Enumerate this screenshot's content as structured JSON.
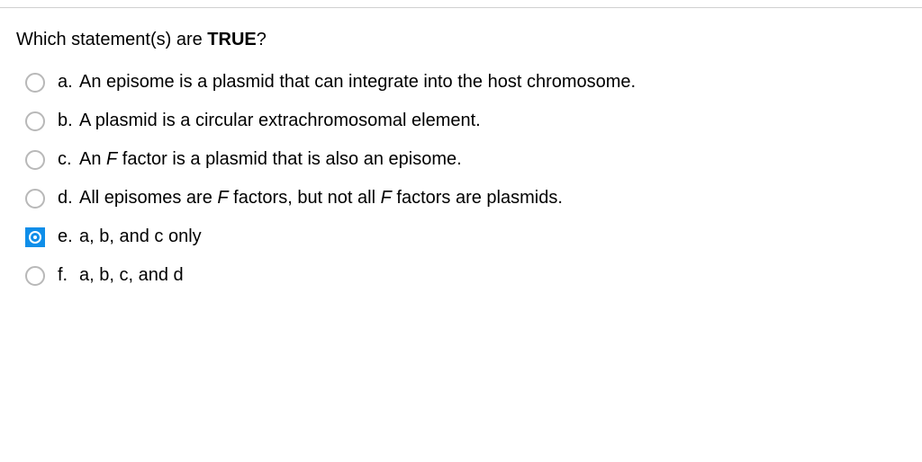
{
  "question": {
    "prefix": "Which statement(s) are ",
    "bold_word": "TRUE",
    "suffix": "?"
  },
  "options": [
    {
      "letter": "a.",
      "selected": false,
      "segments": [
        {
          "text": "An episome is a plasmid that can integrate into the host chromosome.",
          "italic": false
        }
      ]
    },
    {
      "letter": "b.",
      "selected": false,
      "segments": [
        {
          "text": "A plasmid is a circular extrachromosomal element.",
          "italic": false
        }
      ]
    },
    {
      "letter": "c.",
      "selected": false,
      "segments": [
        {
          "text": "An ",
          "italic": false
        },
        {
          "text": "F",
          "italic": true
        },
        {
          "text": " factor is a plasmid that is also an episome.",
          "italic": false
        }
      ]
    },
    {
      "letter": "d.",
      "selected": false,
      "segments": [
        {
          "text": "All episomes are ",
          "italic": false
        },
        {
          "text": "F",
          "italic": true
        },
        {
          "text": " factors, but not all ",
          "italic": false
        },
        {
          "text": "F",
          "italic": true
        },
        {
          "text": " factors are plasmids.",
          "italic": false
        }
      ]
    },
    {
      "letter": "e.",
      "selected": true,
      "segments": [
        {
          "text": "a, b, and c only",
          "italic": false
        }
      ]
    },
    {
      "letter": "f.",
      "selected": false,
      "segments": [
        {
          "text": " a, b, c, and d",
          "italic": false
        }
      ]
    }
  ],
  "colors": {
    "selected_bg": "#0f8ee9",
    "radio_border": "#b8b8b8",
    "text": "#000000",
    "divider": "#d0d0d0",
    "background": "#ffffff"
  },
  "typography": {
    "font_family": "Arial, Helvetica, sans-serif",
    "question_fontsize": 20,
    "option_fontsize": 20
  }
}
